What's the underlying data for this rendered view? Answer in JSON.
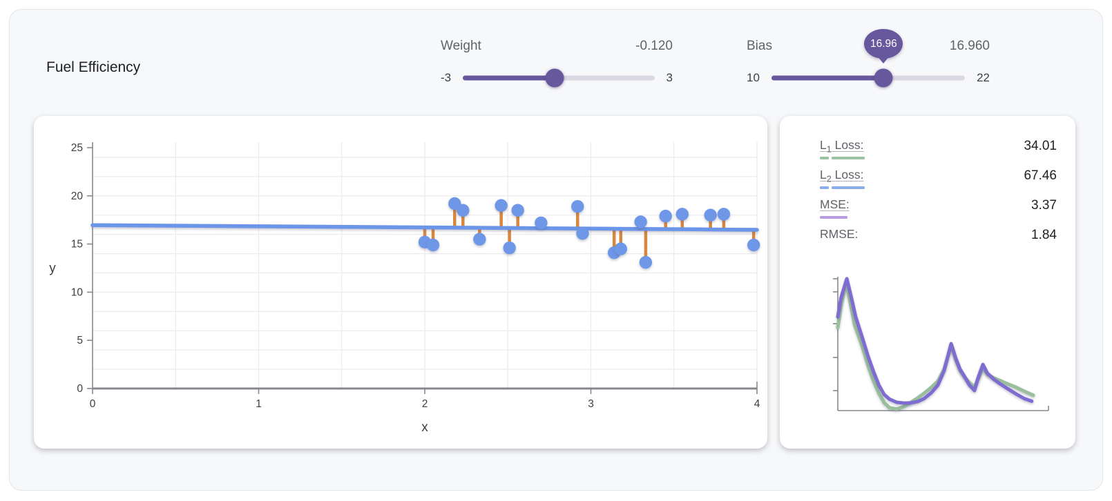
{
  "title": "Fuel Efficiency",
  "sliders": {
    "weight": {
      "label": "Weight",
      "value": -0.12,
      "value_display": "-0.120",
      "min": -3,
      "max": 3,
      "min_label": "-3",
      "max_label": "3"
    },
    "bias": {
      "label": "Bias",
      "value": 16.96,
      "value_display": "16.960",
      "min": 10,
      "max": 22,
      "min_label": "10",
      "max_label": "22",
      "tooltip": "16.96"
    }
  },
  "loss_panel": {
    "rows": [
      {
        "label": "L",
        "sub": "1",
        "label_rest": " Loss:",
        "value": "34.01",
        "underlined": true,
        "bar_color": "#9dc29f",
        "bar_segments": [
          13,
          48
        ]
      },
      {
        "label": "L",
        "sub": "2",
        "label_rest": " Loss:",
        "value": "67.46",
        "underlined": true,
        "bar_color": "#8badea",
        "bar_segments": [
          13,
          48
        ]
      },
      {
        "label": "MSE:",
        "sub": "",
        "label_rest": "",
        "value": "3.37",
        "underlined": true,
        "bar_color": "#b89be1",
        "bar_segments": [
          40
        ]
      },
      {
        "label": "RMSE:",
        "sub": "",
        "label_rest": "",
        "value": "1.84",
        "underlined": false,
        "bar_color": "",
        "bar_segments": []
      }
    ]
  },
  "chart_data": [
    {
      "type": "scatter",
      "title": "fuel-efficiency-fit",
      "xlabel": "x",
      "ylabel": "y",
      "xlim": [
        0,
        4
      ],
      "ylim": [
        0,
        25
      ],
      "x_ticks": [
        0,
        1,
        2,
        3,
        4
      ],
      "y_ticks": [
        0,
        5,
        10,
        15,
        20,
        25
      ],
      "minor_x_step": 0.5,
      "minor_y_step": 2,
      "grid": true,
      "legend": "none",
      "points": [
        [
          2.0,
          15.2
        ],
        [
          2.05,
          14.9
        ],
        [
          2.18,
          19.2
        ],
        [
          2.23,
          18.5
        ],
        [
          2.33,
          15.5
        ],
        [
          2.46,
          19.0
        ],
        [
          2.51,
          14.6
        ],
        [
          2.56,
          18.5
        ],
        [
          2.7,
          17.2
        ],
        [
          2.92,
          18.9
        ],
        [
          2.95,
          16.1
        ],
        [
          3.14,
          14.1
        ],
        [
          3.18,
          14.5
        ],
        [
          3.3,
          17.3
        ],
        [
          3.33,
          13.1
        ],
        [
          3.45,
          17.9
        ],
        [
          3.55,
          18.1
        ],
        [
          3.72,
          18.0
        ],
        [
          3.8,
          18.1
        ],
        [
          3.98,
          14.9
        ]
      ],
      "regression": {
        "weight": -0.12,
        "bias": 16.96
      },
      "show_residuals": true,
      "colors": {
        "point": "#6e97e8",
        "line": "#6b95e8",
        "residual": "#d8873d",
        "grid": "#ececec",
        "axis": "#85898e",
        "tick_text": "#3c4043"
      }
    },
    {
      "type": "line",
      "title": "loss-history",
      "xlabel": "",
      "ylabel": "",
      "legend": "none",
      "y_tick_percents": [
        98.5,
        88.7,
        64.9,
        39.7,
        14.9
      ],
      "series": [
        {
          "name": "L1 loss",
          "color": "#9abf9c",
          "points": [
            [
              0,
              62
            ],
            [
              1.5,
              78
            ],
            [
              3.9,
              95.9
            ],
            [
              6,
              80
            ],
            [
              8,
              64
            ],
            [
              11.5,
              48.5
            ],
            [
              14.5,
              33
            ],
            [
              17,
              22
            ],
            [
              19.5,
              13
            ],
            [
              22,
              6
            ],
            [
              24.6,
              2.1
            ],
            [
              28,
              1.2
            ],
            [
              31,
              2.8
            ],
            [
              34,
              5.5
            ],
            [
              37.5,
              9
            ],
            [
              41,
              13
            ],
            [
              44.5,
              17.5
            ],
            [
              47.5,
              22
            ],
            [
              50.5,
              31
            ],
            [
              53.8,
              48.5
            ],
            [
              56,
              38
            ],
            [
              58,
              30
            ],
            [
              60,
              25.3
            ],
            [
              62.5,
              21
            ],
            [
              64.9,
              17.5
            ],
            [
              66.5,
              23
            ],
            [
              68.9,
              32
            ],
            [
              71,
              27
            ],
            [
              74,
              24.5
            ],
            [
              77,
              22.5
            ],
            [
              80.5,
              20
            ],
            [
              84.6,
              17.5
            ],
            [
              88.5,
              14.5
            ],
            [
              92.8,
              11.5
            ]
          ]
        },
        {
          "name": "MSE loss",
          "color": "#7e6cd1",
          "points": [
            [
              0,
              70
            ],
            [
              1.5,
              84
            ],
            [
              4.3,
              98.5
            ],
            [
              6.5,
              84
            ],
            [
              8.5,
              70
            ],
            [
              11.5,
              55.2
            ],
            [
              14.5,
              40
            ],
            [
              17,
              29
            ],
            [
              19.5,
              19
            ],
            [
              22,
              12
            ],
            [
              24.6,
              8.5
            ],
            [
              28,
              6.2
            ],
            [
              31.5,
              5.6
            ],
            [
              34.4,
              5.7
            ],
            [
              38,
              6.8
            ],
            [
              41,
              9
            ],
            [
              44.5,
              13.5
            ],
            [
              47.5,
              19
            ],
            [
              50.5,
              30
            ],
            [
              53.8,
              50
            ],
            [
              56,
              39
            ],
            [
              58,
              31
            ],
            [
              60,
              26
            ],
            [
              62.5,
              19
            ],
            [
              64.9,
              15
            ],
            [
              66.5,
              24
            ],
            [
              68.9,
              34.5
            ],
            [
              71,
              28
            ],
            [
              74,
              23.5
            ],
            [
              77,
              20
            ],
            [
              80.5,
              16.5
            ],
            [
              84.6,
              12.5
            ],
            [
              88.5,
              9
            ],
            [
              92.1,
              7
            ]
          ]
        }
      ]
    }
  ],
  "colors": {
    "accent": "#67589d",
    "slider_track": "#dcd8e3",
    "card_bg": "#ffffff",
    "page_bg": "#f7f8fa"
  }
}
